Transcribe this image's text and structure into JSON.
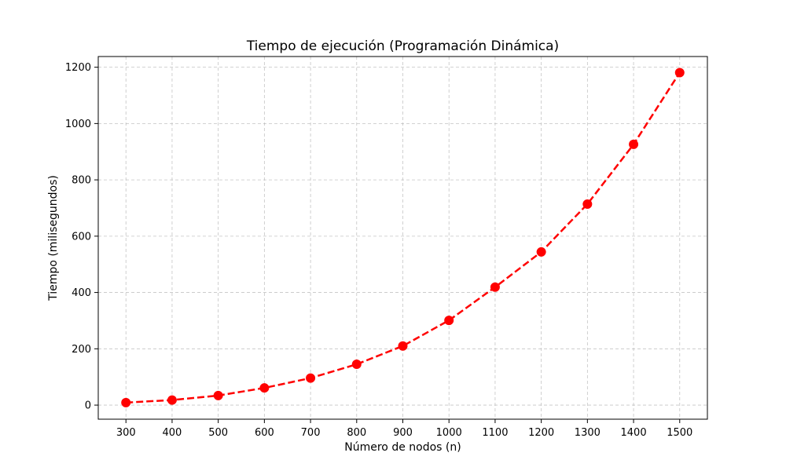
{
  "chart_data": {
    "type": "line",
    "title": "Tiempo de ejecución (Programación Dinámica)",
    "xlabel": "Número de nodos (n)",
    "ylabel": "Tiempo (milisegundos)",
    "x": [
      300,
      400,
      500,
      600,
      700,
      800,
      900,
      1000,
      1100,
      1200,
      1300,
      1400,
      1500
    ],
    "x_tick_labels": [
      "300",
      "400",
      "500",
      "600",
      "700",
      "800",
      "900",
      "1000",
      "1100",
      "1200",
      "1300",
      "1400",
      "1500"
    ],
    "y_ticks": [
      0,
      200,
      400,
      600,
      800,
      1000,
      1200
    ],
    "y_tick_labels": [
      "0",
      "200",
      "400",
      "600",
      "800",
      "1000",
      "1200"
    ],
    "xlim": [
      240,
      1560
    ],
    "ylim": [
      -50,
      1238
    ],
    "series": [
      {
        "values": [
          9,
          18,
          34,
          61,
          96,
          145,
          210,
          301,
          419,
          544,
          714,
          926,
          1181
        ],
        "color": "#ff0000",
        "line_style": "dashed",
        "marker": "circle"
      }
    ],
    "grid": true,
    "grid_style": "dashed",
    "legend": false
  }
}
